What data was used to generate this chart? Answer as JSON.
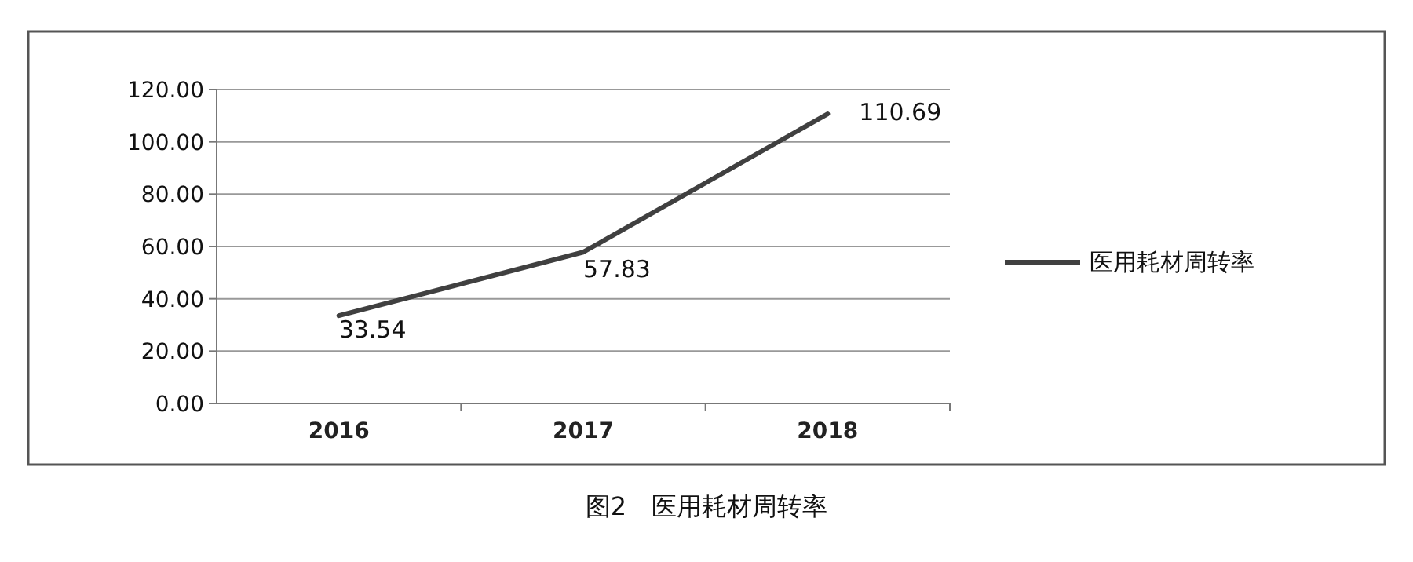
{
  "chart_data": {
    "type": "line",
    "title": "图2　医用耗材周转率",
    "categories": [
      "2016",
      "2017",
      "2018"
    ],
    "series": [
      {
        "name": "医用耗材周转率",
        "color": "#404040",
        "values": [
          33.54,
          57.83,
          110.69
        ]
      }
    ],
    "ylim": [
      0,
      120
    ],
    "yticks": [
      {
        "value": 0,
        "label": "0.00"
      },
      {
        "value": 20,
        "label": "20.00"
      },
      {
        "value": 40,
        "label": "40.00"
      },
      {
        "value": 60,
        "label": "60.00"
      },
      {
        "value": 80,
        "label": "80.00"
      },
      {
        "value": 100,
        "label": "100.00"
      },
      {
        "value": 120,
        "label": "120.00"
      }
    ],
    "grid": "y",
    "legend": "right",
    "data_labels": true,
    "marker": "none",
    "line_style": "solid"
  }
}
